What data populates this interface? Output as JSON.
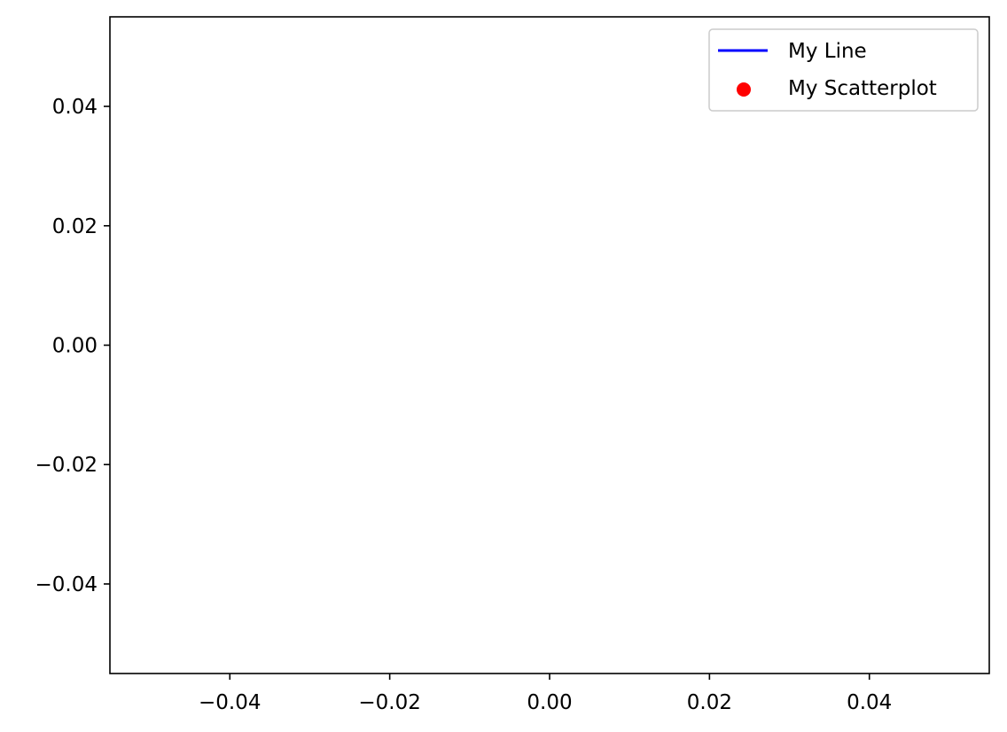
{
  "chart_data": {
    "type": "line",
    "title": "",
    "xlabel": "",
    "ylabel": "",
    "xlim": [
      -0.055,
      0.055
    ],
    "ylim": [
      -0.055,
      0.055
    ],
    "x_ticks": [
      -0.04,
      -0.02,
      0.0,
      0.02,
      0.04
    ],
    "y_ticks": [
      -0.04,
      -0.02,
      0.0,
      0.02,
      0.04
    ],
    "x_tick_labels": [
      "−0.04",
      "−0.02",
      "0.00",
      "0.02",
      "0.04"
    ],
    "y_tick_labels": [
      "−0.04",
      "−0.02",
      "0.00",
      "0.02",
      "0.04"
    ],
    "grid": false,
    "legend_position": "top-right",
    "series": [
      {
        "name": "My Line",
        "kind": "line",
        "color": "#0000ff",
        "x": [],
        "y": []
      },
      {
        "name": "My Scatterplot",
        "kind": "scatter",
        "color": "#ff0000",
        "x": [],
        "y": []
      }
    ]
  }
}
